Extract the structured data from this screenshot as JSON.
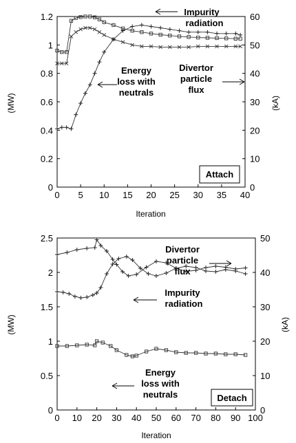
{
  "chart_data": [
    {
      "type": "line",
      "label": "Attach",
      "xlabel": "Iteration",
      "ylabel": "(MW)",
      "y2label": "(kA)",
      "xlim": [
        0,
        40
      ],
      "ylim": [
        0,
        1.2
      ],
      "y2lim": [
        0,
        60
      ],
      "xticks": [
        0,
        5,
        10,
        15,
        20,
        25,
        30,
        35,
        40
      ],
      "yticks": [
        "0",
        "0.2",
        "0.4",
        "0.6",
        "0.8",
        "1",
        "1.2"
      ],
      "y2ticks": [
        "0",
        "10",
        "20",
        "30",
        "40",
        "50",
        "60"
      ],
      "grid": false,
      "series": [
        {
          "name": "Impurity radiation",
          "axis": "left",
          "marker": "x",
          "x": [
            0,
            1,
            2,
            3,
            4,
            5,
            6,
            7,
            8,
            9,
            10,
            12,
            14,
            16,
            18,
            20,
            22,
            24,
            26,
            28,
            30,
            32,
            34,
            36,
            38,
            39
          ],
          "y": [
            0.87,
            0.87,
            0.87,
            1.06,
            1.09,
            1.11,
            1.12,
            1.12,
            1.11,
            1.09,
            1.07,
            1.04,
            1.02,
            1.0,
            0.99,
            0.99,
            0.985,
            0.985,
            0.985,
            0.985,
            0.99,
            0.99,
            0.99,
            0.99,
            0.99,
            0.99
          ]
        },
        {
          "name": "Divertor particle flux",
          "axis": "right",
          "marker": "square",
          "x": [
            0,
            1,
            2,
            3,
            4,
            5,
            6,
            7,
            8,
            9,
            10,
            12,
            14,
            16,
            18,
            20,
            22,
            24,
            26,
            28,
            30,
            32,
            34,
            36,
            38,
            39
          ],
          "y": [
            48,
            47.5,
            47.5,
            58.5,
            59.5,
            59.8,
            60,
            60,
            59.7,
            59,
            58,
            57,
            55.8,
            55,
            54.5,
            54,
            53.6,
            53.3,
            53,
            52.8,
            52.6,
            52.5,
            52.4,
            52.3,
            52.2,
            52.2
          ]
        },
        {
          "name": "Energy loss with neutrals",
          "axis": "left",
          "marker": "plus",
          "x": [
            0,
            1,
            2,
            3,
            4,
            5,
            6,
            7,
            8,
            9,
            10,
            12,
            14,
            16,
            18,
            20,
            22,
            24,
            26,
            28,
            30,
            32,
            34,
            36,
            38,
            39
          ],
          "y": [
            0.41,
            0.42,
            0.42,
            0.41,
            0.51,
            0.59,
            0.66,
            0.72,
            0.8,
            0.88,
            0.95,
            1.04,
            1.1,
            1.13,
            1.14,
            1.13,
            1.12,
            1.11,
            1.1,
            1.09,
            1.09,
            1.09,
            1.08,
            1.08,
            1.08,
            1.07
          ]
        }
      ],
      "annotations": [
        {
          "text": [
            "Impurity",
            "radiation"
          ]
        },
        {
          "text": [
            "Energy",
            "loss with",
            "neutrals"
          ]
        },
        {
          "text": [
            "Divertor",
            "particle",
            "flux"
          ]
        }
      ]
    },
    {
      "type": "line",
      "label": "Detach",
      "xlabel": "Iteration",
      "ylabel": "(MW)",
      "y2label": "(kA)",
      "xlim": [
        0,
        100
      ],
      "ylim": [
        0,
        2.5
      ],
      "y2lim": [
        0,
        50
      ],
      "xticks": [
        0,
        10,
        20,
        30,
        40,
        50,
        60,
        70,
        80,
        90,
        100
      ],
      "yticks": [
        "0",
        "0.5",
        "1",
        "1.5",
        "2",
        "2.5"
      ],
      "y2ticks": [
        "0",
        "10",
        "20",
        "30",
        "40",
        "50"
      ],
      "grid": false,
      "series": [
        {
          "name": "Divertor particle flux",
          "axis": "right",
          "marker": "plus",
          "x": [
            0,
            5,
            10,
            15,
            19,
            20,
            22,
            25,
            28,
            30,
            33,
            36,
            40,
            45,
            50,
            55,
            60,
            65,
            70,
            75,
            80,
            85,
            90,
            95
          ],
          "y": [
            45.2,
            45.8,
            46.6,
            47.0,
            47.2,
            49.5,
            47.8,
            46.2,
            43.8,
            42.3,
            40.2,
            39.0,
            39.4,
            41.5,
            43.2,
            42.8,
            41.2,
            40.3,
            40.6,
            41.4,
            41.8,
            41.5,
            41.0,
            41.3
          ]
        },
        {
          "name": "Impurity radiation",
          "axis": "left",
          "marker": "plus",
          "x": [
            0,
            3,
            6,
            9,
            12,
            15,
            18,
            20,
            22,
            25,
            28,
            31,
            35,
            38,
            42,
            46,
            50,
            55,
            60,
            65,
            70,
            75,
            80,
            85,
            90,
            95
          ],
          "y": [
            1.72,
            1.71,
            1.69,
            1.65,
            1.63,
            1.64,
            1.67,
            1.7,
            1.78,
            1.98,
            2.12,
            2.2,
            2.23,
            2.18,
            2.06,
            1.98,
            1.95,
            1.99,
            2.06,
            2.09,
            2.07,
            2.02,
            2.01,
            2.04,
            2.02,
            1.98
          ]
        },
        {
          "name": "Energy loss with neutrals",
          "axis": "left",
          "marker": "square",
          "x": [
            0,
            5,
            10,
            15,
            19,
            20,
            23,
            27,
            30,
            35,
            38,
            40,
            45,
            50,
            55,
            60,
            65,
            70,
            75,
            80,
            85,
            90,
            95
          ],
          "y": [
            0.93,
            0.93,
            0.94,
            0.95,
            0.94,
            1.0,
            0.98,
            0.93,
            0.87,
            0.8,
            0.78,
            0.79,
            0.85,
            0.89,
            0.87,
            0.84,
            0.83,
            0.83,
            0.82,
            0.82,
            0.81,
            0.81,
            0.8
          ]
        }
      ],
      "annotations": [
        {
          "text": [
            "Divertor",
            "particle",
            "flux"
          ]
        },
        {
          "text": [
            "Impurity",
            "radiation"
          ]
        },
        {
          "text": [
            "Energy",
            "loss with",
            "neutrals"
          ]
        }
      ]
    }
  ]
}
